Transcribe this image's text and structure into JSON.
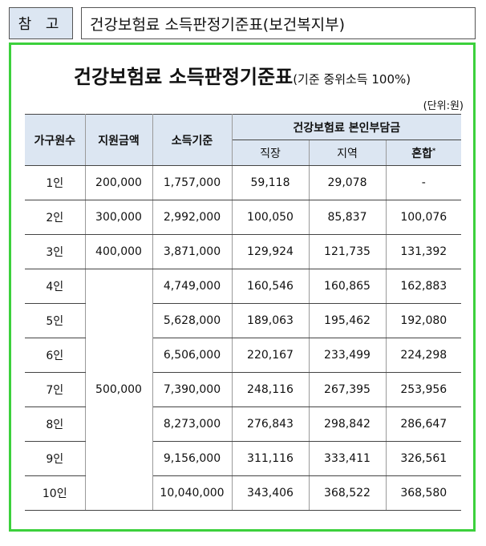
{
  "header": {
    "tag": "참 고",
    "title": "건강보험료 소득판정기준표(보건복지부)"
  },
  "content": {
    "title_main": "건강보험료 소득판정기준표",
    "title_sub": "(기준 중위소득 100%)",
    "unit": "(단위:원)"
  },
  "table": {
    "headers": {
      "household": "가구원수",
      "support": "지원금액",
      "income": "소득기준",
      "premium_group": "건강보험료 본인부담금",
      "workplace": "직장",
      "region": "지역",
      "mixed": "혼합",
      "mixed_mark": "*"
    },
    "merged_support": "500,000",
    "rows": [
      {
        "household": "1인",
        "support": "200,000",
        "income": "1,757,000",
        "workplace": "59,118",
        "region": "29,078",
        "mixed": "-"
      },
      {
        "household": "2인",
        "support": "300,000",
        "income": "2,992,000",
        "workplace": "100,050",
        "region": "85,837",
        "mixed": "100,076"
      },
      {
        "household": "3인",
        "support": "400,000",
        "income": "3,871,000",
        "workplace": "129,924",
        "region": "121,735",
        "mixed": "131,392"
      },
      {
        "household": "4인",
        "income": "4,749,000",
        "workplace": "160,546",
        "region": "160,865",
        "mixed": "162,883"
      },
      {
        "household": "5인",
        "income": "5,628,000",
        "workplace": "189,063",
        "region": "195,462",
        "mixed": "192,080"
      },
      {
        "household": "6인",
        "income": "6,506,000",
        "workplace": "220,167",
        "region": "233,499",
        "mixed": "224,298"
      },
      {
        "household": "7인",
        "income": "7,390,000",
        "workplace": "248,116",
        "region": "267,395",
        "mixed": "253,956"
      },
      {
        "household": "8인",
        "income": "8,273,000",
        "workplace": "276,843",
        "region": "298,842",
        "mixed": "286,647"
      },
      {
        "household": "9인",
        "income": "9,156,000",
        "workplace": "311,116",
        "region": "333,411",
        "mixed": "326,561"
      },
      {
        "household": "10인",
        "income": "10,040,000",
        "workplace": "343,406",
        "region": "368,522",
        "mixed": "368,580"
      }
    ]
  },
  "colors": {
    "header_fill": "#dce6f2",
    "frame_border": "#3cd03c"
  }
}
